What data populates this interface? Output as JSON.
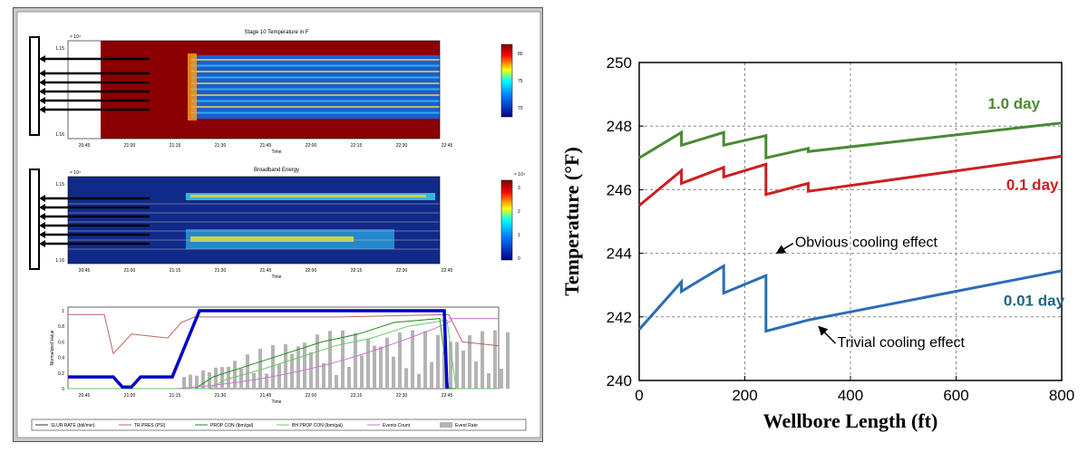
{
  "left_figure": {
    "panel1": {
      "title": "Stage 10 Temperature in F",
      "y_exponent": "× 10⁴",
      "y_ticks": [
        "1.15",
        "1.16"
      ],
      "colorbar_ticks": [
        "80",
        "75",
        "70"
      ],
      "xlabel": "Time",
      "x_ticks": [
        "20:45",
        "21:00",
        "21:15",
        "21:30",
        "21:45",
        "22:00",
        "22:15",
        "22:30",
        "22:45"
      ]
    },
    "panel2": {
      "title": "Broadband Energy",
      "y_exponent": "× 10⁴",
      "y_ticks": [
        "1.15",
        "1.16"
      ],
      "colorbar_exponent": "× 10⁴",
      "colorbar_ticks": [
        "3",
        "2",
        "1",
        "0"
      ],
      "xlabel": "Time",
      "x_ticks": [
        "20:45",
        "21:00",
        "21:15",
        "21:30",
        "21:45",
        "22:00",
        "22:15",
        "22:30",
        "22:45"
      ]
    },
    "panel3": {
      "ylabel": "Normalized Value",
      "y_ticks": [
        "1",
        "0.8",
        "0.6",
        "0.4",
        "0.2",
        "0"
      ],
      "xlabel": "Time",
      "x_ticks": [
        "20:45",
        "21:00",
        "21:15",
        "21:30",
        "21:45",
        "22:00",
        "22:15",
        "22:30",
        "22:45"
      ],
      "legend": [
        "SLUR RATE (bbl/min)",
        "TR PRES (PSI)",
        "PROP CON (lbm/gal)",
        "BH PROP CON (lbm/gal)",
        "Events Count",
        "Event Rate"
      ],
      "colors": {
        "slur_rate": "#0000cc",
        "tr_pres": "#c06060",
        "prop_con": "#1a8f1a",
        "bh_prop_con": "#66cc66",
        "events_count": "#d070d0",
        "event_rate": "#b4b4b4"
      }
    }
  },
  "chart_data": {
    "type": "line",
    "xlabel": "Wellbore Length (ft)",
    "ylabel": "Temperature (°F)",
    "xlim": [
      0,
      800
    ],
    "ylim": [
      240,
      250
    ],
    "x_ticks": [
      "0",
      "200",
      "400",
      "600",
      "800"
    ],
    "y_ticks": [
      "240",
      "242",
      "244",
      "246",
      "248",
      "250"
    ],
    "grid": true,
    "series": [
      {
        "name": "1.0 day",
        "color": "#4a8a32",
        "points": [
          [
            0,
            247.0
          ],
          [
            80,
            247.8
          ],
          [
            80,
            247.4
          ],
          [
            160,
            247.8
          ],
          [
            160,
            247.4
          ],
          [
            240,
            247.7
          ],
          [
            240,
            247.0
          ],
          [
            320,
            247.3
          ],
          [
            320,
            247.2
          ],
          [
            800,
            248.1
          ]
        ]
      },
      {
        "name": "0.1 day",
        "color": "#cc1f1f",
        "points": [
          [
            0,
            245.5
          ],
          [
            80,
            246.6
          ],
          [
            80,
            246.2
          ],
          [
            160,
            246.7
          ],
          [
            160,
            246.4
          ],
          [
            240,
            246.8
          ],
          [
            240,
            245.85
          ],
          [
            320,
            246.2
          ],
          [
            320,
            245.95
          ],
          [
            800,
            247.05
          ]
        ]
      },
      {
        "name": "0.01 day",
        "color": "#2a6db8",
        "points": [
          [
            0,
            241.6
          ],
          [
            80,
            243.1
          ],
          [
            80,
            242.8
          ],
          [
            160,
            243.6
          ],
          [
            160,
            242.75
          ],
          [
            240,
            243.3
          ],
          [
            240,
            241.55
          ],
          [
            320,
            241.9
          ],
          [
            800,
            243.45
          ]
        ]
      }
    ],
    "annotations": [
      {
        "text": "Obvious cooling effect",
        "x": 260,
        "y": 244.0,
        "tx": 295,
        "ty": 244.2
      },
      {
        "text": "Trivial cooling effect",
        "x": 340,
        "y": 241.7,
        "tx": 375,
        "ty": 241.05
      }
    ],
    "label_colors": {
      "1.0 day": "#4a8a32",
      "0.1 day": "#cc1f1f",
      "0.01 day": "#1f6680"
    }
  }
}
